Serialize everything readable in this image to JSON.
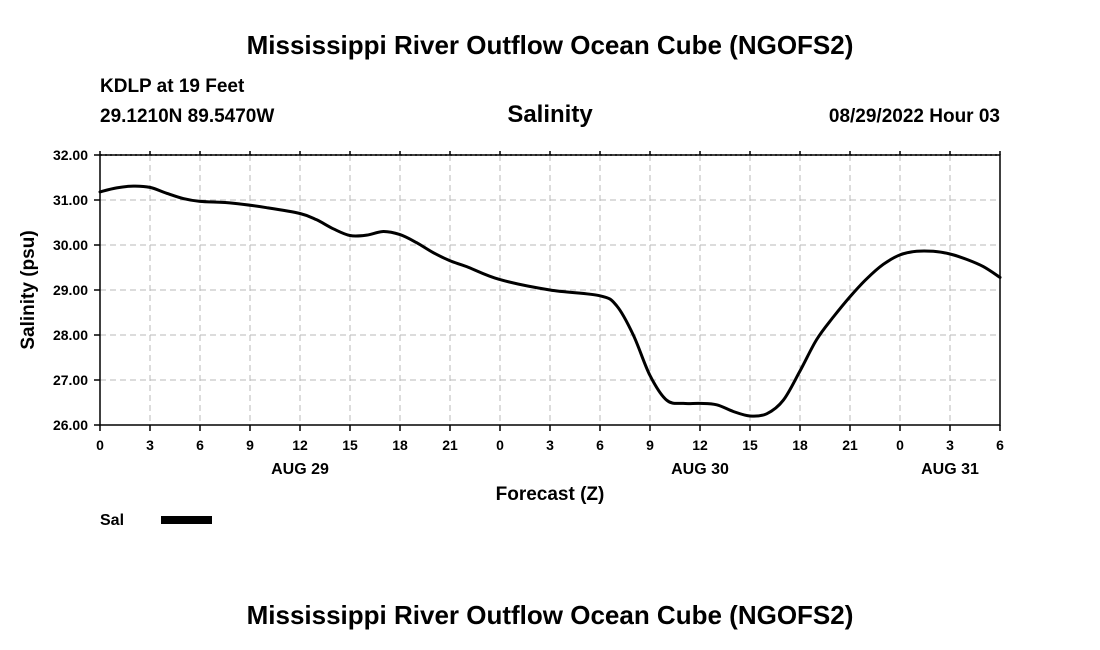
{
  "header": {
    "title": "Mississippi River Outflow Ocean Cube (NGOFS2)",
    "station_line1": "KDLP at 19 Feet",
    "station_line2": "29.1210N  89.5470W",
    "datetime": "08/29/2022 Hour 03"
  },
  "footer": {
    "title": "Mississippi River Outflow Ocean Cube (NGOFS2)"
  },
  "chart_data": {
    "type": "line",
    "title": "Salinity",
    "xlabel": "Forecast (Z)",
    "ylabel": "Salinity (psu)",
    "xlim": [
      0,
      54
    ],
    "ylim": [
      26,
      32
    ],
    "grid": true,
    "yticks": [
      26,
      27,
      28,
      29,
      30,
      31,
      32
    ],
    "ytick_labels": [
      "26.00",
      "27.00",
      "28.00",
      "29.00",
      "30.00",
      "31.00",
      "32.00"
    ],
    "xticks": [
      0,
      3,
      6,
      9,
      12,
      15,
      18,
      21,
      24,
      27,
      30,
      33,
      36,
      39,
      42,
      45,
      48,
      51,
      54
    ],
    "xtick_labels": [
      "0",
      "3",
      "6",
      "9",
      "12",
      "15",
      "18",
      "21",
      "0",
      "3",
      "6",
      "9",
      "12",
      "15",
      "18",
      "21",
      "0",
      "3",
      "6"
    ],
    "date_labels": [
      {
        "x": 12,
        "label": "AUG 29"
      },
      {
        "x": 36,
        "label": "AUG 30"
      },
      {
        "x": 51,
        "label": "AUG 31"
      }
    ],
    "series": [
      {
        "name": "Sal",
        "color": "#000000",
        "x": [
          0,
          1,
          2,
          3,
          4,
          5,
          6,
          8,
          10,
          12,
          13,
          14,
          15,
          16,
          17,
          18,
          19,
          20,
          21,
          22,
          24,
          27,
          30,
          31,
          32,
          33,
          34,
          35,
          36,
          37,
          38,
          39,
          40,
          41,
          42,
          43,
          44,
          45,
          46,
          47,
          48,
          49,
          50,
          51,
          52,
          53,
          54
        ],
        "values": [
          31.18,
          31.27,
          31.31,
          31.28,
          31.15,
          31.03,
          30.97,
          30.93,
          30.83,
          30.7,
          30.56,
          30.36,
          30.21,
          30.22,
          30.3,
          30.23,
          30.05,
          29.83,
          29.65,
          29.52,
          29.23,
          29.0,
          28.87,
          28.65,
          28.0,
          27.1,
          26.55,
          26.48,
          26.48,
          26.45,
          26.3,
          26.2,
          26.25,
          26.55,
          27.2,
          27.9,
          28.4,
          28.85,
          29.25,
          29.57,
          29.78,
          29.86,
          29.86,
          29.8,
          29.68,
          29.52,
          29.28
        ]
      }
    ],
    "legend": {
      "label": "Sal",
      "position": "bottom-left"
    }
  }
}
